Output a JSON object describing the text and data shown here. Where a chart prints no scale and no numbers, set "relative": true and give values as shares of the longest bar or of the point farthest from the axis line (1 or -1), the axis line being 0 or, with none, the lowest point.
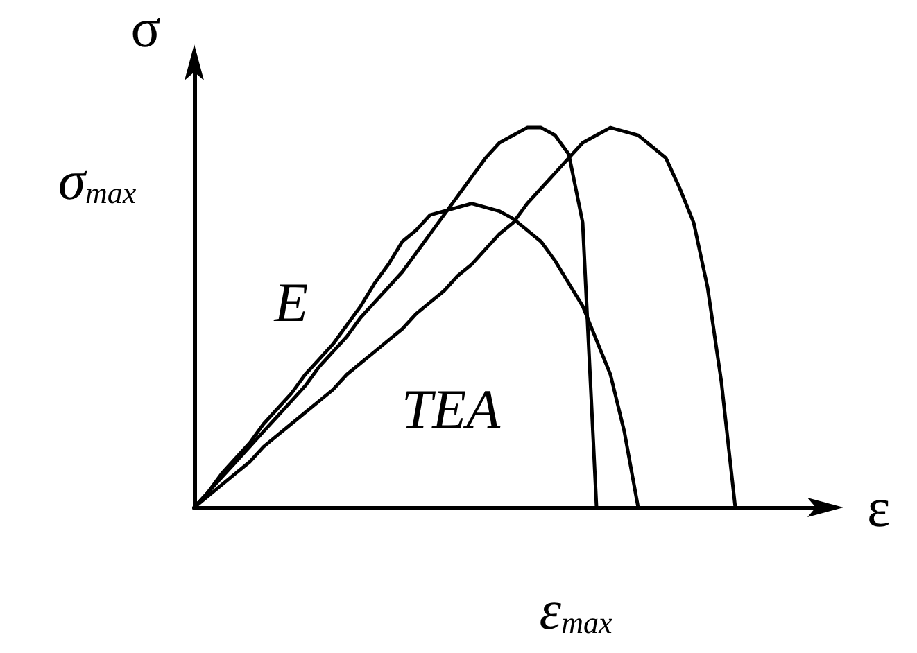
{
  "chart_data": {
    "type": "line",
    "relative": true,
    "xlabel": "ε",
    "ylabel": "σ",
    "grid": false,
    "marker": "none",
    "line_style": "solid",
    "categories": [
      null,
      null,
      null,
      null,
      null,
      null,
      null,
      null,
      null,
      null,
      null,
      null,
      null,
      null,
      null,
      null,
      null,
      null,
      null,
      null,
      null,
      null,
      null,
      null,
      null,
      null,
      null,
      null,
      null,
      null,
      null,
      null,
      null,
      null,
      null,
      null,
      null,
      null,
      null,
      null,
      null,
      null,
      null,
      null,
      null,
      null,
      null
    ],
    "series": [
      {
        "color": "#000000",
        "values": [
          0,
          0.04,
          0.08,
          0.12,
          0.16,
          0.2,
          0.24,
          0.28,
          0.32,
          0.37,
          0.41,
          0.45,
          0.5,
          0.54,
          0.58,
          0.62,
          0.67,
          0.72,
          0.77,
          0.82,
          0.87,
          0.92,
          0.96,
          0.98,
          1,
          1,
          0.98,
          0.93,
          0.75,
          0,
          null,
          null,
          null,
          null,
          null,
          null,
          null,
          null,
          null,
          null,
          null,
          null,
          null,
          null,
          null,
          null,
          null
        ]
      },
      {
        "color": "#000000",
        "values": [
          0,
          0.04,
          0.09,
          0.13,
          0.17,
          0.22,
          0.26,
          0.3,
          0.35,
          0.39,
          0.43,
          0.48,
          0.53,
          0.59,
          0.64,
          0.7,
          0.73,
          0.77,
          0.78,
          0.79,
          0.8,
          0.79,
          0.78,
          0.76,
          0.73,
          0.7,
          0.65,
          0.59,
          0.53,
          0.44,
          0.35,
          0.2,
          0,
          null,
          null,
          null,
          null,
          null,
          null,
          null,
          null,
          null,
          null,
          null,
          null,
          null,
          null
        ]
      },
      {
        "color": "#000000",
        "values": [
          0,
          0.03,
          0.06,
          0.09,
          0.12,
          0.16,
          0.19,
          0.22,
          0.25,
          0.28,
          0.31,
          0.35,
          0.38,
          0.41,
          0.44,
          0.47,
          0.51,
          0.54,
          0.57,
          0.61,
          0.64,
          0.68,
          0.72,
          0.75,
          0.8,
          0.84,
          0.88,
          0.92,
          0.96,
          0.98,
          1,
          0.99,
          0.98,
          0.95,
          0.92,
          0.84,
          0.75,
          0.58,
          0.33,
          0,
          null,
          null,
          null,
          null,
          null,
          null,
          null
        ]
      }
    ],
    "annotations": [
      "E",
      "TEA",
      "σ$_{max}$",
      "ε$_{max}$"
    ]
  }
}
